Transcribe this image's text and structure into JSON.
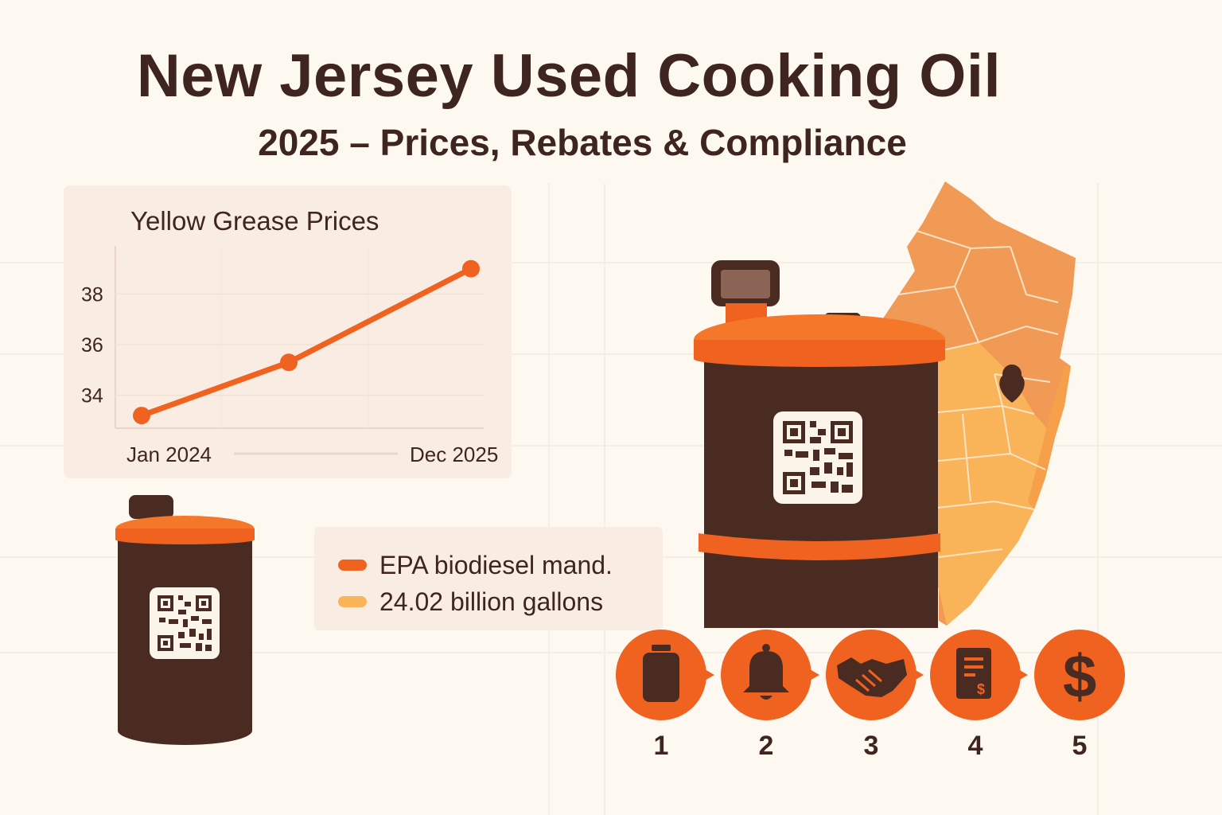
{
  "header": {
    "title": "New Jersey Used Cooking Oil",
    "subtitle": "2025 – Prices, Rebates & Compliance"
  },
  "chart_data": {
    "type": "line",
    "title": "Yellow Grease Prices",
    "x_labels": [
      "Jan 2024",
      "Dec 2025"
    ],
    "y_ticks": [
      34,
      36,
      38
    ],
    "ylim": [
      32.7,
      39.9
    ],
    "x": [
      "Jan 2024",
      "Jan 2025",
      "Dec 2025"
    ],
    "values": [
      33.2,
      35.3,
      39.0
    ],
    "grid": true,
    "color": "#f0621f"
  },
  "legend": {
    "items": [
      {
        "label": "EPA biodiesel mand.",
        "color": "#f0621f"
      },
      {
        "label": "24.02 billion gallons",
        "color": "#f9b45a"
      }
    ]
  },
  "steps": [
    {
      "number": "1",
      "icon": "container-icon"
    },
    {
      "number": "2",
      "icon": "bell-icon"
    },
    {
      "number": "3",
      "icon": "handshake-icon"
    },
    {
      "number": "4",
      "icon": "invoice-icon"
    },
    {
      "number": "5",
      "icon": "dollar-icon"
    }
  ],
  "colors": {
    "background": "#fdf9f1",
    "drum_body": "#4a2b22",
    "accent_orange": "#f0621f",
    "map_light": "#f9b45a",
    "map_dark": "#f09a55",
    "text": "#3e2520"
  }
}
